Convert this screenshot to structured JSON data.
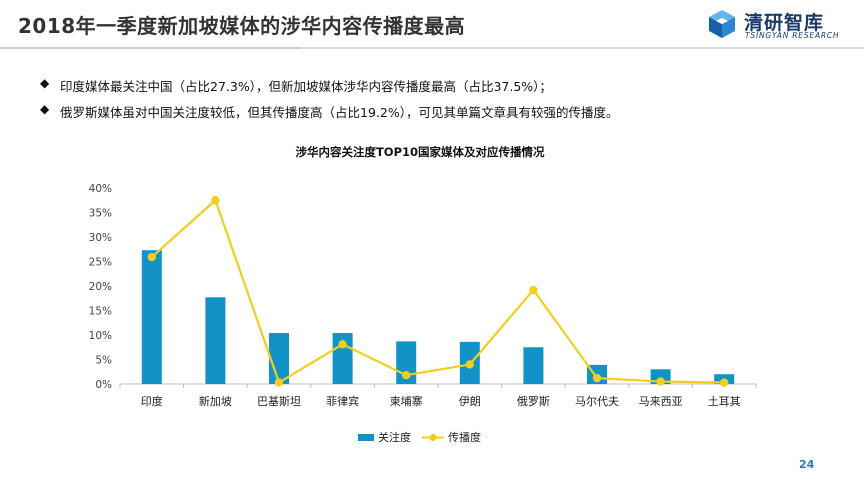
{
  "slide": {
    "title": "2018年一季度新加坡媒体的涉华内容传播度最高",
    "page_number": "24"
  },
  "logo": {
    "name": "清研智库",
    "subtitle": "TSINGYAN RESEARCH"
  },
  "bullets": [
    "印度媒体最关注中国（占比27.3%），但新加坡媒体涉华内容传播度最高（占比37.5%）；",
    "俄罗斯媒体虽对中国关注度较低，但其传播度高（占比19.2%），可见其单篇文章具有较强的传播度。"
  ],
  "colors": {
    "bar": "#1193c7",
    "line": "#f2cf1e",
    "title_text": "#333333",
    "page_number": "#2a7bc0"
  },
  "chart_data": {
    "type": "bar",
    "title": "涉华内容关注度TOP10国家媒体及对应传播情况",
    "categories": [
      "印度",
      "新加坡",
      "巴基斯坦",
      "菲律宾",
      "柬埔寨",
      "伊朗",
      "俄罗斯",
      "马尔代夫",
      "马来西亚",
      "土耳其"
    ],
    "series": [
      {
        "name": "关注度",
        "type": "bar",
        "values": [
          27.3,
          17.7,
          10.4,
          10.4,
          8.7,
          8.6,
          7.5,
          3.9,
          3.0,
          2.0
        ]
      },
      {
        "name": "传播度",
        "type": "line",
        "values": [
          25.9,
          37.5,
          0.3,
          8.1,
          1.8,
          4.0,
          19.2,
          1.2,
          0.5,
          0.3
        ]
      }
    ],
    "y_ticks": [
      "0%",
      "5%",
      "10%",
      "15%",
      "20%",
      "25%",
      "30%",
      "35%",
      "40%"
    ],
    "ylim": [
      0,
      40
    ],
    "legend_position": "bottom",
    "grid": false
  }
}
